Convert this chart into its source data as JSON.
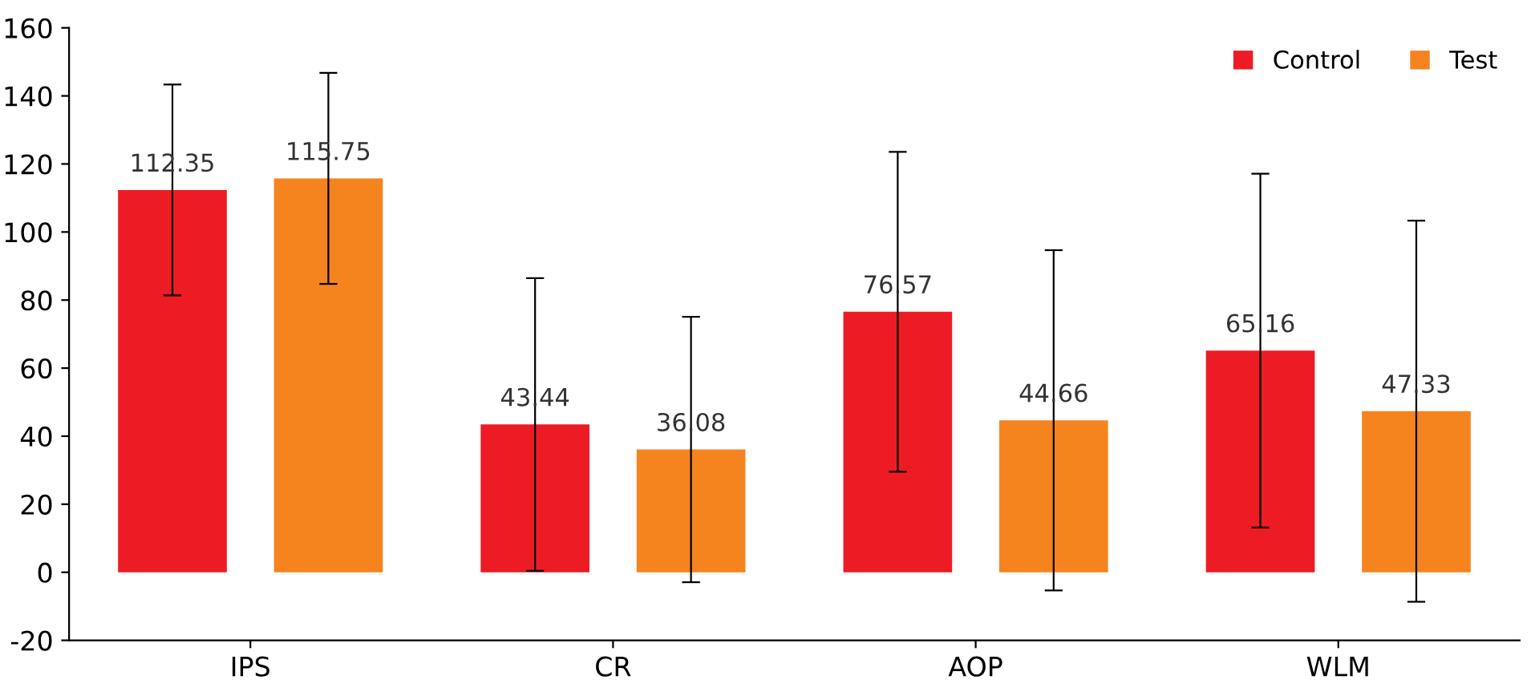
{
  "chart_data": {
    "type": "bar",
    "categories": [
      "IPS",
      "CR",
      "AOP",
      "WLM"
    ],
    "series": [
      {
        "name": "Control",
        "color": "#ed1c24",
        "values": [
          112.35,
          43.44,
          76.57,
          65.16
        ],
        "errors": [
          31,
          43,
          47,
          52
        ]
      },
      {
        "name": "Test",
        "color": "#f5841f",
        "values": [
          115.75,
          36.08,
          44.66,
          47.33
        ],
        "errors": [
          31,
          39,
          50,
          56
        ]
      }
    ],
    "ylim": [
      -20,
      160
    ],
    "yticks": [
      -20,
      0,
      20,
      40,
      60,
      80,
      100,
      120,
      140,
      160
    ],
    "data_labels": true,
    "legend": "top right",
    "grid": false
  }
}
